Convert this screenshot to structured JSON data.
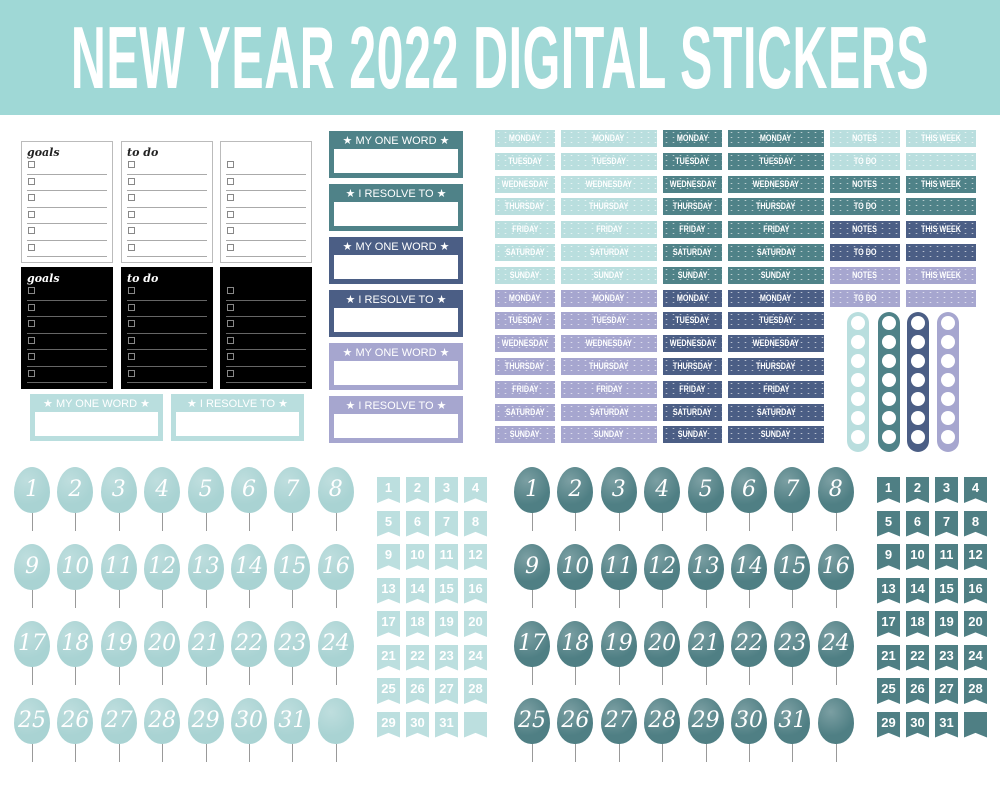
{
  "title": "NEW YEAR 2022 DIGITAL STICKERS",
  "colors": {
    "title_bar": "#9fd8d6",
    "light_teal": "#b9dede",
    "teal": "#4f8288",
    "navy": "#4b5e85",
    "lavender": "#a6a6cf",
    "black": "#000000"
  },
  "checklists": [
    {
      "title": "goals",
      "theme": "white"
    },
    {
      "title": "to do",
      "theme": "white"
    },
    {
      "title": "",
      "theme": "white"
    },
    {
      "title": "goals",
      "theme": "black"
    },
    {
      "title": "to do",
      "theme": "black"
    },
    {
      "title": "",
      "theme": "black"
    }
  ],
  "banners": [
    {
      "text": "★ MY ONE WORD ★",
      "color": "#b9dede"
    },
    {
      "text": "★  I RESOLVE TO  ★",
      "color": "#b9dede"
    },
    {
      "text": "★ MY ONE WORD ★",
      "color": "#4f8288"
    },
    {
      "text": "★  I RESOLVE TO  ★",
      "color": "#4f8288"
    },
    {
      "text": "★ MY ONE WORD ★",
      "color": "#4b5e85"
    },
    {
      "text": "★  I RESOLVE TO  ★",
      "color": "#4b5e85"
    },
    {
      "text": "★ MY ONE WORD ★",
      "color": "#a6a6cf"
    },
    {
      "text": "★  I RESOLVE TO  ★",
      "color": "#a6a6cf"
    }
  ],
  "days": [
    "MONDAY",
    "TUESDAY",
    "WEDNESDAY",
    "THURSDAY",
    "FRIDAY",
    "SATURDAY",
    "SUNDAY"
  ],
  "side_labels": [
    [
      "NOTES",
      "THIS WEEK"
    ],
    [
      "TO DO",
      ""
    ]
  ],
  "date_numbers": [
    "1",
    "2",
    "3",
    "4",
    "5",
    "6",
    "7",
    "8",
    "9",
    "10",
    "11",
    "12",
    "13",
    "14",
    "15",
    "16",
    "17",
    "18",
    "19",
    "20",
    "21",
    "22",
    "23",
    "24",
    "25",
    "26",
    "27",
    "28",
    "29",
    "30",
    "31",
    ""
  ]
}
